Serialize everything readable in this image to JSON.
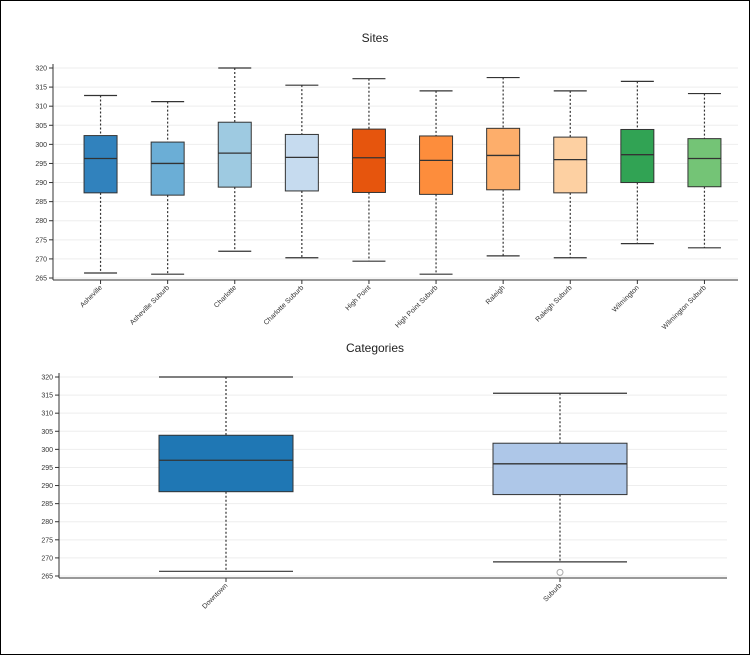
{
  "chart_data": [
    {
      "type": "box",
      "title": "Sites",
      "ylim": [
        265,
        320
      ],
      "yticks": [
        265,
        270,
        275,
        280,
        285,
        290,
        295,
        300,
        305,
        310,
        315,
        320
      ],
      "grid": true,
      "categories": [
        "Asheville",
        "Asheville Suburb",
        "Charlotte",
        "Charlotte Suburb",
        "High Point",
        "High Point Suburb",
        "Raleigh",
        "Raleigh Suburb",
        "Wilmington",
        "Wilmington Suburb"
      ],
      "colors": [
        "#3182bd",
        "#6baed6",
        "#9ecae1",
        "#c6dbef",
        "#e6550d",
        "#fd8d3c",
        "#fdae6b",
        "#fdd0a2",
        "#31a354",
        "#74c476"
      ],
      "boxes": [
        {
          "min": 266.3,
          "q1": 287.3,
          "median": 296.3,
          "q3": 302.3,
          "max": 312.8
        },
        {
          "min": 266.0,
          "q1": 286.7,
          "median": 295.0,
          "q3": 300.6,
          "max": 311.2
        },
        {
          "min": 272.0,
          "q1": 288.8,
          "median": 297.7,
          "q3": 305.8,
          "max": 320.0
        },
        {
          "min": 270.3,
          "q1": 287.8,
          "median": 296.6,
          "q3": 302.6,
          "max": 315.5
        },
        {
          "min": 269.4,
          "q1": 287.4,
          "median": 296.5,
          "q3": 304.0,
          "max": 317.2
        },
        {
          "min": 266.0,
          "q1": 286.9,
          "median": 295.8,
          "q3": 302.2,
          "max": 314.0
        },
        {
          "min": 270.8,
          "q1": 288.1,
          "median": 297.1,
          "q3": 304.2,
          "max": 317.5
        },
        {
          "min": 270.3,
          "q1": 287.3,
          "median": 296.0,
          "q3": 301.9,
          "max": 314.0
        },
        {
          "min": 274.0,
          "q1": 290.0,
          "median": 297.3,
          "q3": 303.9,
          "max": 316.5
        },
        {
          "min": 272.9,
          "q1": 288.9,
          "median": 296.3,
          "q3": 301.5,
          "max": 313.3
        }
      ]
    },
    {
      "type": "box",
      "title": "Categories",
      "ylim": [
        265,
        320
      ],
      "yticks": [
        265,
        270,
        275,
        280,
        285,
        290,
        295,
        300,
        305,
        310,
        315,
        320
      ],
      "grid": true,
      "categories": [
        "Downtown",
        "Suburb"
      ],
      "colors": [
        "#1f77b4",
        "#aec7e8"
      ],
      "boxes": [
        {
          "min": 266.3,
          "q1": 288.3,
          "median": 297.0,
          "q3": 303.9,
          "max": 320.0,
          "outliers": []
        },
        {
          "min": 268.9,
          "q1": 287.5,
          "median": 296.0,
          "q3": 301.7,
          "max": 315.5,
          "outliers": [
            266.0
          ]
        }
      ]
    }
  ]
}
